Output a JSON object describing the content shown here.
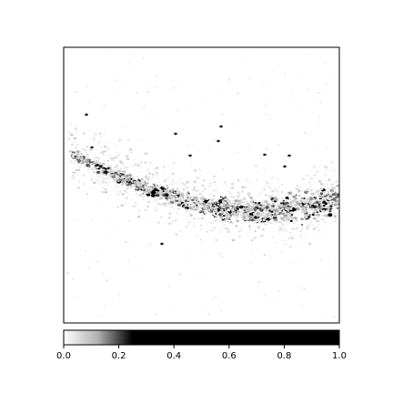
{
  "colorbar": {
    "ticks": [
      {
        "value": 0.0,
        "label": "0.0"
      },
      {
        "value": 0.2,
        "label": "0.2"
      },
      {
        "value": 0.4,
        "label": "0.4"
      },
      {
        "value": 0.6,
        "label": "0.6"
      },
      {
        "value": 0.8,
        "label": "0.8"
      },
      {
        "value": 1.0,
        "label": "1.0"
      }
    ],
    "range": [
      0,
      1
    ],
    "saturates_at": 0.25,
    "cmap": "gray_r"
  },
  "colors": {
    "frame": "#000000",
    "background": "#ffffff",
    "ink": "#000000"
  }
}
